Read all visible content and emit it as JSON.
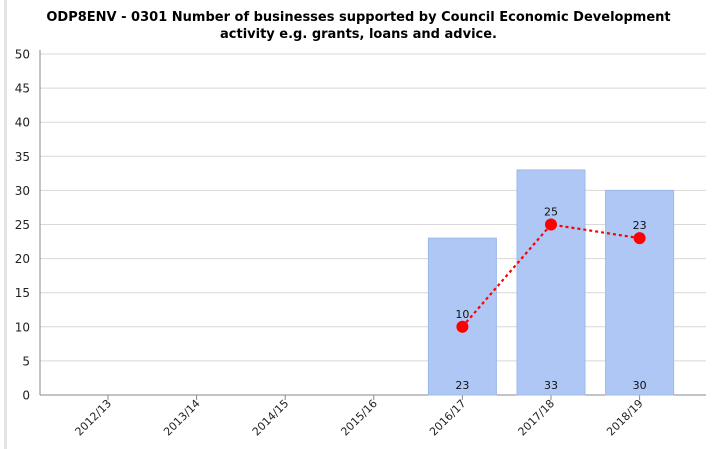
{
  "chart_data": {
    "type": "bar",
    "title_lines": [
      "ODP8ENV - 0301 Number of businesses supported by Council Economic Development",
      "activity e.g. grants, loans and advice."
    ],
    "categories": [
      "2012/13",
      "2013/14",
      "2014/15",
      "2015/16",
      "2016/17",
      "2017/18",
      "2018/19"
    ],
    "series": [
      {
        "type": "bar",
        "values": [
          null,
          null,
          null,
          null,
          23,
          33,
          30
        ],
        "labels": [
          "",
          "",
          "",
          "",
          "23",
          "33",
          "30"
        ],
        "color": "#aec7f4"
      },
      {
        "type": "line",
        "style": "dotted",
        "values": [
          null,
          null,
          null,
          null,
          10,
          25,
          23
        ],
        "labels": [
          "",
          "",
          "",
          "",
          "10",
          "25",
          "23"
        ],
        "color": "#ff0000"
      }
    ],
    "ylim": [
      0,
      50
    ],
    "yticks": [
      "0",
      "5",
      "10",
      "15",
      "20",
      "25",
      "30",
      "35",
      "40",
      "45",
      "50"
    ],
    "grid": "horizontal",
    "legend": "none"
  }
}
